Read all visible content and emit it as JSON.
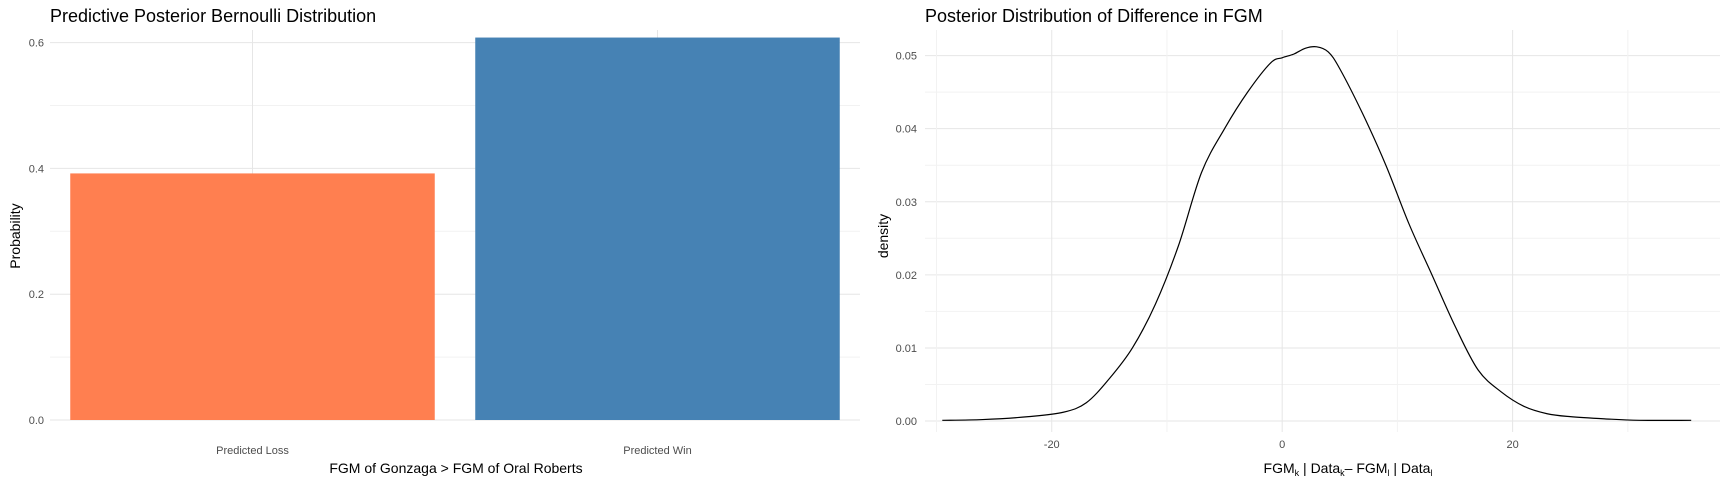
{
  "chart_data": [
    {
      "type": "bar",
      "title": "Predictive Posterior Bernoulli Distribution",
      "xlabel": "FGM of Gonzaga > FGM of Oral Roberts",
      "ylabel": "Probability",
      "categories": [
        "Predicted Loss",
        "Predicted Win"
      ],
      "values": [
        0.392,
        0.608
      ],
      "colors": [
        "#FF7F50",
        "#4682B4"
      ],
      "ylim": [
        0,
        0.62
      ],
      "yticks": [
        0.0,
        0.2,
        0.4,
        0.6
      ],
      "ytick_labels": [
        "0.0",
        "0.2",
        "0.4",
        "0.6"
      ],
      "grid": true,
      "legend": "none"
    },
    {
      "type": "line",
      "title": "Posterior Distribution of Difference in FGM",
      "xlabel_parts": {
        "a": "FGM",
        "a_sub": "k",
        "b": " | Data",
        "b_sub": "k",
        "c": "– FGM",
        "c_sub": "l",
        "d": " | Data",
        "d_sub": "l"
      },
      "ylabel": "density",
      "xlim": [
        -31,
        38
      ],
      "ylim": [
        -0.0015,
        0.0535
      ],
      "xticks": [
        -20,
        0,
        20
      ],
      "xtick_labels": [
        "-20",
        "0",
        "20"
      ],
      "yticks": [
        0.0,
        0.01,
        0.02,
        0.03,
        0.04,
        0.05
      ],
      "ytick_labels": [
        "0.00",
        "0.01",
        "0.02",
        "0.03",
        "0.04",
        "0.05"
      ],
      "color": "#000000",
      "grid": true,
      "legend": "none",
      "series": [
        {
          "x": [
            -29.5,
            -26,
            -22,
            -19,
            -17,
            -15,
            -13,
            -11,
            -9,
            -7,
            -5,
            -3,
            -1,
            0,
            1,
            2,
            3,
            4,
            5,
            7,
            9,
            11,
            13,
            15,
            17,
            19,
            21,
            23,
            25,
            28,
            31,
            35.5
          ],
          "y": [
            0.0001,
            0.0002,
            0.0006,
            0.0012,
            0.0025,
            0.0058,
            0.01,
            0.016,
            0.024,
            0.034,
            0.04,
            0.045,
            0.049,
            0.0497,
            0.0502,
            0.051,
            0.0512,
            0.0505,
            0.0482,
            0.042,
            0.035,
            0.027,
            0.02,
            0.013,
            0.007,
            0.004,
            0.002,
            0.001,
            0.0006,
            0.0003,
            0.0001,
            0.0001
          ]
        }
      ]
    }
  ]
}
